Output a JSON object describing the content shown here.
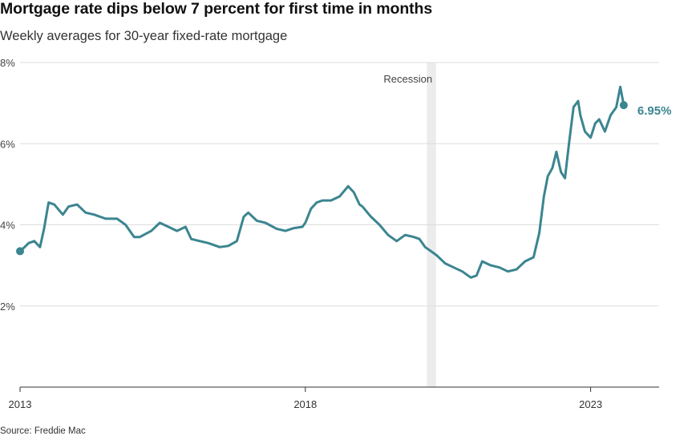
{
  "header": {
    "title": "Mortgage rate dips below 7 percent for first time in months",
    "subtitle": "Weekly averages for 30-year fixed-rate mortgage"
  },
  "footer": {
    "source": "Source: Freddie Mac"
  },
  "colors": {
    "line": "#3b8590",
    "recession": "#ececec",
    "grid": "#dddddd",
    "axis": "#333333"
  },
  "chart_data": {
    "type": "line",
    "title": "Mortgage rate dips below 7 percent for first time in months",
    "subtitle": "Weekly averages for 30-year fixed-rate mortgage",
    "xlabel": "",
    "ylabel": "",
    "xlim": [
      2013.0,
      2024.2
    ],
    "ylim": [
      0,
      8
    ],
    "y_ticks": [
      {
        "value": 2,
        "label": "2%"
      },
      {
        "value": 4,
        "label": "4%"
      },
      {
        "value": 6,
        "label": "6%"
      },
      {
        "value": 8,
        "label": "8%"
      }
    ],
    "x_ticks": [
      {
        "value": 2013,
        "label": "2013"
      },
      {
        "value": 2018,
        "label": "2018"
      },
      {
        "value": 2023,
        "label": "2023"
      }
    ],
    "grid": true,
    "annotations": [
      {
        "type": "band",
        "label": "Recession",
        "x_start": 2020.13,
        "x_end": 2020.29
      },
      {
        "type": "end-label",
        "label": "6.95%",
        "x": 2023.58,
        "y": 6.95
      }
    ],
    "series": [
      {
        "x": [
          2013.0,
          2013.08,
          2013.15,
          2013.25,
          2013.35,
          2013.42,
          2013.5,
          2013.6,
          2013.75,
          2013.85,
          2014.0,
          2014.15,
          2014.3,
          2014.5,
          2014.7,
          2014.85,
          2015.0,
          2015.1,
          2015.3,
          2015.45,
          2015.6,
          2015.75,
          2015.9,
          2016.0,
          2016.15,
          2016.3,
          2016.5,
          2016.65,
          2016.8,
          2016.92,
          2017.0,
          2017.15,
          2017.3,
          2017.5,
          2017.65,
          2017.8,
          2017.95,
          2018.0,
          2018.1,
          2018.2,
          2018.3,
          2018.45,
          2018.6,
          2018.75,
          2018.85,
          2018.95,
          2019.0,
          2019.15,
          2019.3,
          2019.45,
          2019.6,
          2019.75,
          2019.9,
          2020.0,
          2020.1,
          2020.2,
          2020.3,
          2020.45,
          2020.6,
          2020.75,
          2020.9,
          2021.0,
          2021.1,
          2021.25,
          2021.4,
          2021.55,
          2021.7,
          2021.85,
          2022.0,
          2022.1,
          2022.18,
          2022.25,
          2022.33,
          2022.4,
          2022.48,
          2022.55,
          2022.62,
          2022.7,
          2022.78,
          2022.82,
          2022.9,
          2023.0,
          2023.08,
          2023.15,
          2023.25,
          2023.35,
          2023.45,
          2023.52,
          2023.58
        ],
        "y": [
          3.35,
          3.45,
          3.55,
          3.6,
          3.45,
          3.9,
          4.55,
          4.5,
          4.25,
          4.45,
          4.5,
          4.3,
          4.25,
          4.15,
          4.15,
          4.0,
          3.7,
          3.7,
          3.85,
          4.05,
          3.95,
          3.85,
          3.95,
          3.65,
          3.6,
          3.55,
          3.45,
          3.48,
          3.6,
          4.2,
          4.3,
          4.1,
          4.05,
          3.9,
          3.85,
          3.92,
          3.95,
          4.05,
          4.4,
          4.55,
          4.6,
          4.6,
          4.7,
          4.95,
          4.8,
          4.5,
          4.45,
          4.2,
          4.0,
          3.75,
          3.6,
          3.75,
          3.7,
          3.65,
          3.45,
          3.35,
          3.25,
          3.05,
          2.95,
          2.85,
          2.7,
          2.75,
          3.1,
          3.0,
          2.95,
          2.85,
          2.9,
          3.1,
          3.2,
          3.8,
          4.7,
          5.2,
          5.4,
          5.8,
          5.3,
          5.15,
          6.0,
          6.9,
          7.05,
          6.7,
          6.3,
          6.15,
          6.5,
          6.6,
          6.3,
          6.7,
          6.9,
          7.4,
          6.95
        ]
      }
    ]
  }
}
